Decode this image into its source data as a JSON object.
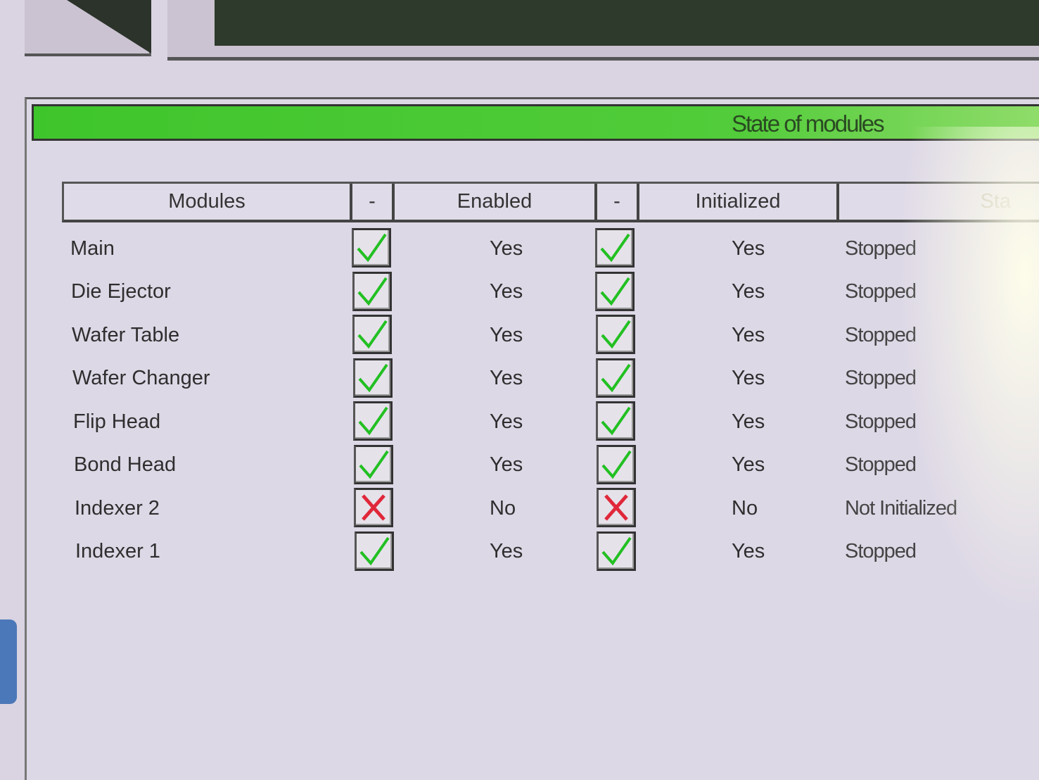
{
  "panel": {
    "title": "State of modules"
  },
  "table": {
    "headers": [
      "Modules",
      "-",
      "Enabled",
      "-",
      "Initialized",
      "Sta"
    ],
    "rows": [
      {
        "module": "Main",
        "enabled_check": true,
        "enabled": "Yes",
        "init_check": true,
        "initialized": "Yes",
        "state": "Stopped"
      },
      {
        "module": "Die Ejector",
        "enabled_check": true,
        "enabled": "Yes",
        "init_check": true,
        "initialized": "Yes",
        "state": "Stopped"
      },
      {
        "module": "Wafer Table",
        "enabled_check": true,
        "enabled": "Yes",
        "init_check": true,
        "initialized": "Yes",
        "state": "Stopped"
      },
      {
        "module": "Wafer Changer",
        "enabled_check": true,
        "enabled": "Yes",
        "init_check": true,
        "initialized": "Yes",
        "state": "Stopped"
      },
      {
        "module": "Flip Head",
        "enabled_check": true,
        "enabled": "Yes",
        "init_check": true,
        "initialized": "Yes",
        "state": "Stopped"
      },
      {
        "module": "Bond Head",
        "enabled_check": true,
        "enabled": "Yes",
        "init_check": true,
        "initialized": "Yes",
        "state": "Stopped"
      },
      {
        "module": "Indexer 2",
        "enabled_check": false,
        "enabled": "No",
        "init_check": false,
        "initialized": "No",
        "state": "Not Initialized"
      },
      {
        "module": "Indexer 1",
        "enabled_check": true,
        "enabled": "Yes",
        "init_check": true,
        "initialized": "Yes",
        "state": "Stopped"
      }
    ]
  },
  "colors": {
    "title_bar": "#4cc83a",
    "check": "#22c022",
    "cross": "#e0283a"
  },
  "icons": {
    "ok": "check-icon",
    "fail": "cross-icon"
  }
}
